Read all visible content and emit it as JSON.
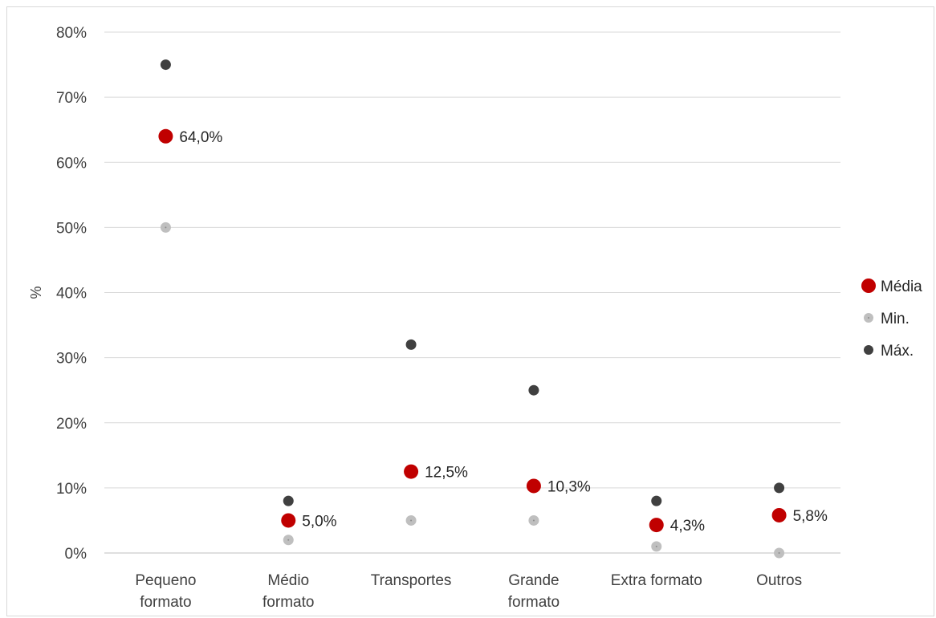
{
  "chart_data": {
    "type": "scatter",
    "title": "",
    "xlabel": "",
    "ylabel": "%",
    "ylim": [
      0,
      80
    ],
    "ytick_step": 10,
    "ytick_labels": [
      "0%",
      "10%",
      "20%",
      "30%",
      "40%",
      "50%",
      "60%",
      "70%",
      "80%"
    ],
    "grid": true,
    "legend_position": "right",
    "categories": [
      [
        "Pequeno",
        "formato"
      ],
      [
        "Médio",
        "formato"
      ],
      [
        "Transportes"
      ],
      [
        "Grande",
        "formato"
      ],
      [
        "Extra formato"
      ],
      [
        "Outros"
      ]
    ],
    "series": [
      {
        "name": "Média",
        "color": "#c00000",
        "values": [
          64.0,
          5.0,
          12.5,
          10.3,
          4.3,
          5.8
        ],
        "data_labels": [
          "64,0%",
          "5,0%",
          "12,5%",
          "10,3%",
          "4,3%",
          "5,8%"
        ]
      },
      {
        "name": "Min.",
        "color": "#bfbfbf",
        "values": [
          50,
          2,
          5,
          5,
          1,
          0
        ]
      },
      {
        "name": "Máx.",
        "color": "#404040",
        "values": [
          75,
          8,
          32,
          25,
          8,
          10
        ]
      }
    ]
  }
}
